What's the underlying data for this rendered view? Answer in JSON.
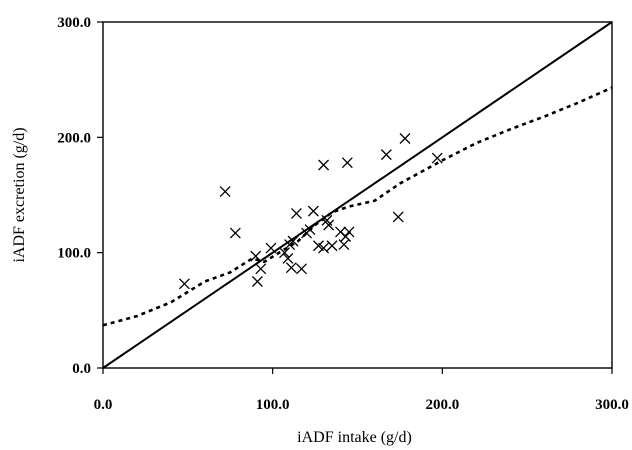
{
  "chart_data": {
    "type": "scatter",
    "title": "",
    "xlabel": "iADF intake (g/d)",
    "ylabel": "iADF excretion (g/d)",
    "xlim": [
      0,
      300
    ],
    "ylim": [
      0,
      300
    ],
    "x_ticks": [
      "0.0",
      "100.0",
      "200.0",
      "300.0"
    ],
    "y_ticks": [
      "0.0",
      "100.0",
      "200.0",
      "300.0"
    ],
    "grid": false,
    "legend": false,
    "colors": {
      "points": "#000000",
      "lines": "#000000",
      "axes": "#000000"
    },
    "series": [
      {
        "kind": "scatter",
        "marker": "x",
        "points": [
          [
            48,
            73
          ],
          [
            72,
            153
          ],
          [
            78,
            117
          ],
          [
            90,
            97
          ],
          [
            91,
            75
          ],
          [
            93,
            86
          ],
          [
            99,
            104
          ],
          [
            107,
            100
          ],
          [
            109,
            95
          ],
          [
            110,
            107
          ],
          [
            111,
            87
          ],
          [
            112,
            110
          ],
          [
            114,
            134
          ],
          [
            117,
            86
          ],
          [
            120,
            117
          ],
          [
            122,
            120
          ],
          [
            124,
            136
          ],
          [
            127,
            106
          ],
          [
            130,
            104
          ],
          [
            130,
            176
          ],
          [
            132,
            128
          ],
          [
            133,
            124
          ],
          [
            135,
            106
          ],
          [
            140,
            118
          ],
          [
            142,
            107
          ],
          [
            143,
            114
          ],
          [
            144,
            178
          ],
          [
            145,
            118
          ],
          [
            167,
            185
          ],
          [
            174,
            131
          ],
          [
            178,
            199
          ],
          [
            197,
            182
          ]
        ]
      },
      {
        "kind": "line",
        "style": "solid",
        "points": [
          [
            0,
            0
          ],
          [
            300,
            300
          ]
        ]
      },
      {
        "kind": "line",
        "style": "dotted",
        "points": [
          [
            0,
            37
          ],
          [
            20,
            45
          ],
          [
            40,
            57
          ],
          [
            60,
            75
          ],
          [
            75,
            83
          ],
          [
            88,
            95
          ],
          [
            95,
            92
          ],
          [
            105,
            101
          ],
          [
            115,
            110
          ],
          [
            125,
            124
          ],
          [
            135,
            135
          ],
          [
            145,
            140
          ],
          [
            160,
            145
          ],
          [
            175,
            160
          ],
          [
            190,
            172
          ],
          [
            200,
            180
          ],
          [
            220,
            195
          ],
          [
            240,
            207
          ],
          [
            260,
            218
          ],
          [
            280,
            230
          ],
          [
            300,
            243
          ]
        ]
      }
    ]
  }
}
